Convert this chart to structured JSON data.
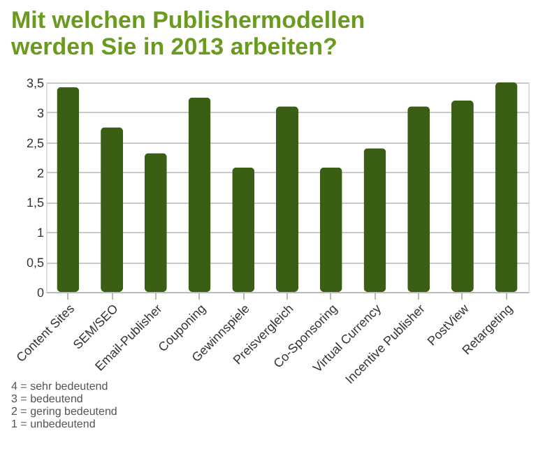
{
  "chart_data": {
    "type": "bar",
    "title": "Mit welchen Publishermodellen werden Sie in 2013 arbeiten?",
    "categories": [
      "Content Sites",
      "SEM/SEO",
      "Email-Publisher",
      "Couponing",
      "Gewinnspiele",
      "Preisvergleich",
      "Co-Sponsoring",
      "Virtual Currency",
      "Incentive Publisher",
      "PostView",
      "Retargeting"
    ],
    "series": [
      {
        "color": "#3a5f14",
        "values": [
          3.42,
          2.75,
          2.32,
          3.25,
          2.08,
          3.1,
          2.08,
          2.4,
          3.1,
          3.2,
          3.5
        ]
      }
    ],
    "ylim": [
      0,
      3.5
    ],
    "yticks": [
      0,
      {
        "value": 0.5,
        "label": "0,5"
      },
      1,
      {
        "value": 1.5,
        "label": "1,5"
      },
      2,
      {
        "value": 2.5,
        "label": "2,5"
      },
      3,
      {
        "value": 3.5,
        "label": "3,5"
      }
    ],
    "grid": "y",
    "annotations": [
      "4 = sehr bedeutend",
      "3 = bedeutend",
      "2 = gering bedeutend",
      "1 = unbedeutend"
    ]
  }
}
